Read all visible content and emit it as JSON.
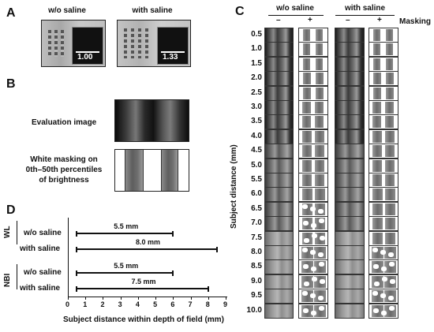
{
  "panels": {
    "A": {
      "label": "A",
      "headers": [
        "w/o saline",
        "with saline"
      ],
      "values": [
        "1.00",
        "1.33"
      ]
    },
    "B": {
      "label": "B",
      "eval_label": "Evaluation image",
      "mask_label_lines": [
        "White masking on",
        "0th–50th percentiles",
        "of brightness"
      ]
    },
    "C": {
      "label": "C",
      "headers": [
        "w/o saline",
        "with saline"
      ],
      "masking_label": "Masking",
      "minus": "–",
      "plus": "+",
      "ylabel": "Subject distance (mm)",
      "distances": [
        "0.5",
        "1.0",
        "1.5",
        "2.0",
        "2.5",
        "3.0",
        "3.5",
        "4.0",
        "4.5",
        "5.0",
        "5.5",
        "6.0",
        "6.5",
        "7.0",
        "7.5",
        "8.0",
        "8.5",
        "9.0",
        "9.5",
        "10.0"
      ]
    },
    "D": {
      "label": "D"
    }
  },
  "chart_data": {
    "type": "bar",
    "orientation": "horizontal",
    "groups": [
      {
        "name": "WL",
        "rows": [
          {
            "label": "w/o saline",
            "start": 0.5,
            "end": 6.0,
            "value_label": "5.5 mm"
          },
          {
            "label": "with saline",
            "start": 0.5,
            "end": 8.5,
            "value_label": "8.0 mm"
          }
        ]
      },
      {
        "name": "NBI",
        "rows": [
          {
            "label": "w/o saline",
            "start": 0.5,
            "end": 6.0,
            "value_label": "5.5 mm"
          },
          {
            "label": "with saline",
            "start": 0.5,
            "end": 8.0,
            "value_label": "7.5 mm"
          }
        ]
      }
    ],
    "xlabel": "Subject distance within depth of field (mm)",
    "xlim": [
      0,
      9
    ],
    "xticks": [
      "0",
      "1",
      "2",
      "3",
      "4",
      "5",
      "6",
      "7",
      "8",
      "9"
    ]
  }
}
